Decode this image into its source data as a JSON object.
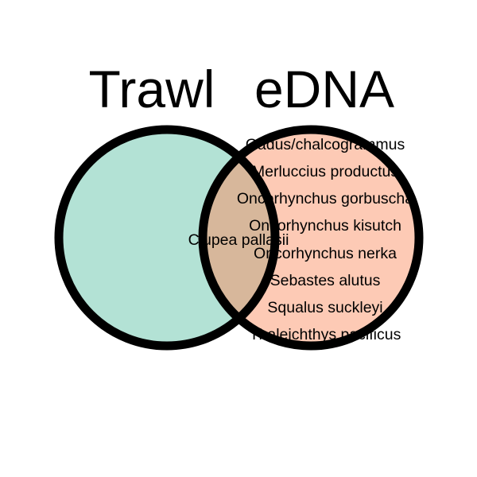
{
  "sets": [
    {
      "name": "Trawl",
      "fill": "#b3e2d5"
    },
    {
      "name": "eDNA",
      "fill": "#fdcab5"
    }
  ],
  "overlap_fill": "#d7b79b",
  "outline": "#000000",
  "regions": {
    "trawl_only": [],
    "shared": [
      "Clupea pallasii"
    ],
    "edna_only": [
      "Gadus/chalcogrammus",
      "Merluccius productus",
      "Oncorhynchus gorbuscha",
      "Oncorhynchus kisutch",
      "Oncorhynchus nerka",
      "Sebastes alutus",
      "Squalus suckleyi",
      "Thaleichthys pacificus"
    ]
  }
}
